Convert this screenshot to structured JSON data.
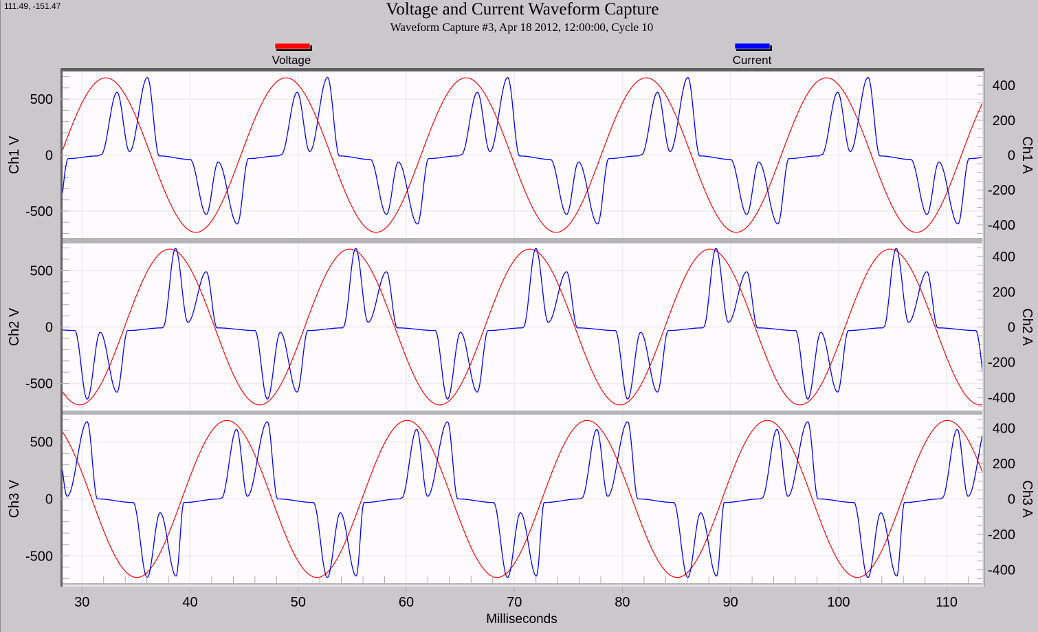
{
  "coordinate_readout": "111.49, -151.47",
  "legend": [
    {
      "label": "Voltage",
      "color": "#ff0000"
    },
    {
      "label": "Current",
      "color": "#0000ff"
    }
  ],
  "chart_data": {
    "type": "line",
    "title": "Voltage and Current Waveform Capture",
    "subtitle": "Waveform Capture #3, Apr 18 2012, 12:00:00,  Cycle 10",
    "xlabel": "Milliseconds",
    "xlim": [
      28.2,
      113.3
    ],
    "xticks": [
      30,
      40,
      50,
      60,
      70,
      80,
      90,
      100,
      110
    ],
    "grid": true,
    "legend_placement": "top",
    "panels": [
      {
        "ylabel_left": "Ch1 V",
        "ylabel_right": "Ch1 A",
        "v_ylim": [
          -740,
          740
        ],
        "a_ylim": [
          -475,
          475
        ],
        "v_ticks": [
          500,
          0,
          -500
        ],
        "a_ticks": [
          400,
          200,
          0,
          -200,
          -400
        ],
        "voltage": {
          "name": "Voltage",
          "model": "sine",
          "amplitude": 690,
          "frequency_hz": 60,
          "peak_ms": 32.2
        },
        "current": {
          "name": "Current",
          "peak_ref_ms": 32.2,
          "period_ms": 16.67,
          "cycle_points": [
            [
              -0.44,
              2
            ],
            [
              1.04,
              360
            ],
            [
              2.2,
              20
            ],
            [
              3.85,
              445
            ],
            [
              4.95,
              -5
            ],
            [
              7.8,
              -25
            ],
            [
              9.3,
              -340
            ],
            [
              10.4,
              -40
            ],
            [
              12.17,
              -395
            ],
            [
              13.2,
              -20
            ],
            [
              15.9,
              -5
            ]
          ]
        }
      },
      {
        "ylabel_left": "Ch2 V",
        "ylabel_right": "Ch2 A",
        "v_ylim": [
          -740,
          740
        ],
        "a_ylim": [
          -475,
          475
        ],
        "v_ticks": [
          500,
          0,
          -500
        ],
        "a_ticks": [
          400,
          200,
          0,
          -200,
          -400
        ],
        "voltage": {
          "name": "Voltage",
          "model": "sine",
          "amplitude": 690,
          "frequency_hz": 60,
          "peak_ms": 38.1
        },
        "current": {
          "name": "Current",
          "peak_ref_ms": 38.1,
          "period_ms": 16.67,
          "cycle_points": [
            [
              -0.6,
              0
            ],
            [
              0.55,
              447
            ],
            [
              1.7,
              27
            ],
            [
              3.4,
              314
            ],
            [
              4.4,
              -5
            ],
            [
              7.9,
              -20
            ],
            [
              9.05,
              -410
            ],
            [
              10.25,
              -30
            ],
            [
              11.8,
              -370
            ],
            [
              12.8,
              -20
            ],
            [
              16.0,
              -5
            ]
          ]
        }
      },
      {
        "ylabel_left": "Ch3 V",
        "ylabel_right": "Ch3 A",
        "v_ylim": [
          -740,
          740
        ],
        "a_ylim": [
          -475,
          475
        ],
        "v_ticks": [
          500,
          0,
          -500
        ],
        "a_ticks": [
          400,
          200,
          0,
          -200,
          -400
        ],
        "voltage": {
          "name": "Voltage",
          "model": "sine",
          "amplitude": 690,
          "frequency_hz": 60,
          "peak_ms": 43.4
        },
        "current": {
          "name": "Current",
          "peak_ref_ms": 43.4,
          "period_ms": 16.67,
          "cycle_points": [
            [
              -0.5,
              5
            ],
            [
              0.9,
              392
            ],
            [
              1.9,
              15
            ],
            [
              3.75,
              435
            ],
            [
              4.7,
              0
            ],
            [
              8.0,
              -20
            ],
            [
              9.3,
              -443
            ],
            [
              10.5,
              -78
            ],
            [
              11.97,
              -435
            ],
            [
              12.7,
              -20
            ],
            [
              16.0,
              0
            ]
          ]
        }
      }
    ]
  }
}
